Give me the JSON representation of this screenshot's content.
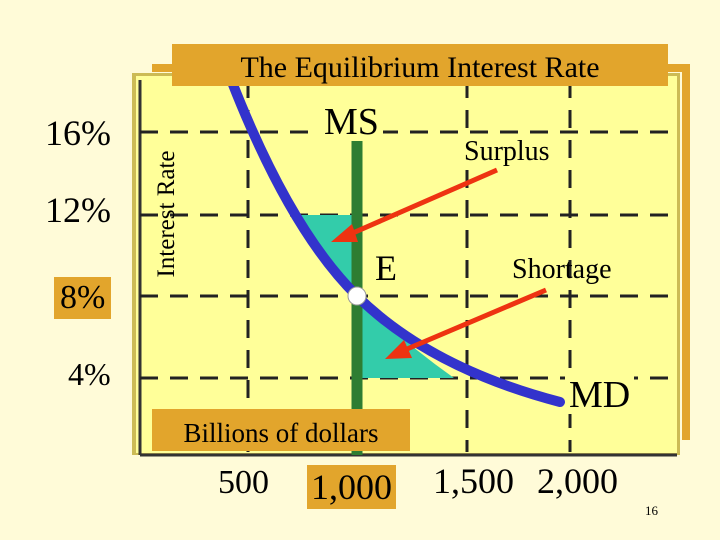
{
  "title": "The Equilibrium Interest Rate",
  "y_axis_label": "Interest Rate",
  "x_axis_label": "Billions of dollars",
  "y_ticks": [
    "16%",
    "12%",
    "8%",
    "4%"
  ],
  "x_ticks": [
    "500",
    "1,000",
    "1,500",
    "2,000"
  ],
  "labels": {
    "ms": "MS",
    "md": "MD",
    "equilibrium": "E",
    "surplus": "Surplus",
    "shortage": "Shortage"
  },
  "page_number": "16",
  "colors": {
    "background": "#fffbd8",
    "panel": "#ffff99",
    "orange": "#e2a52c",
    "supply_line": "#2e7d32",
    "demand_curve": "#3333cc",
    "arrow": "#ee3311",
    "shaded_area": "#33ccaa"
  }
}
